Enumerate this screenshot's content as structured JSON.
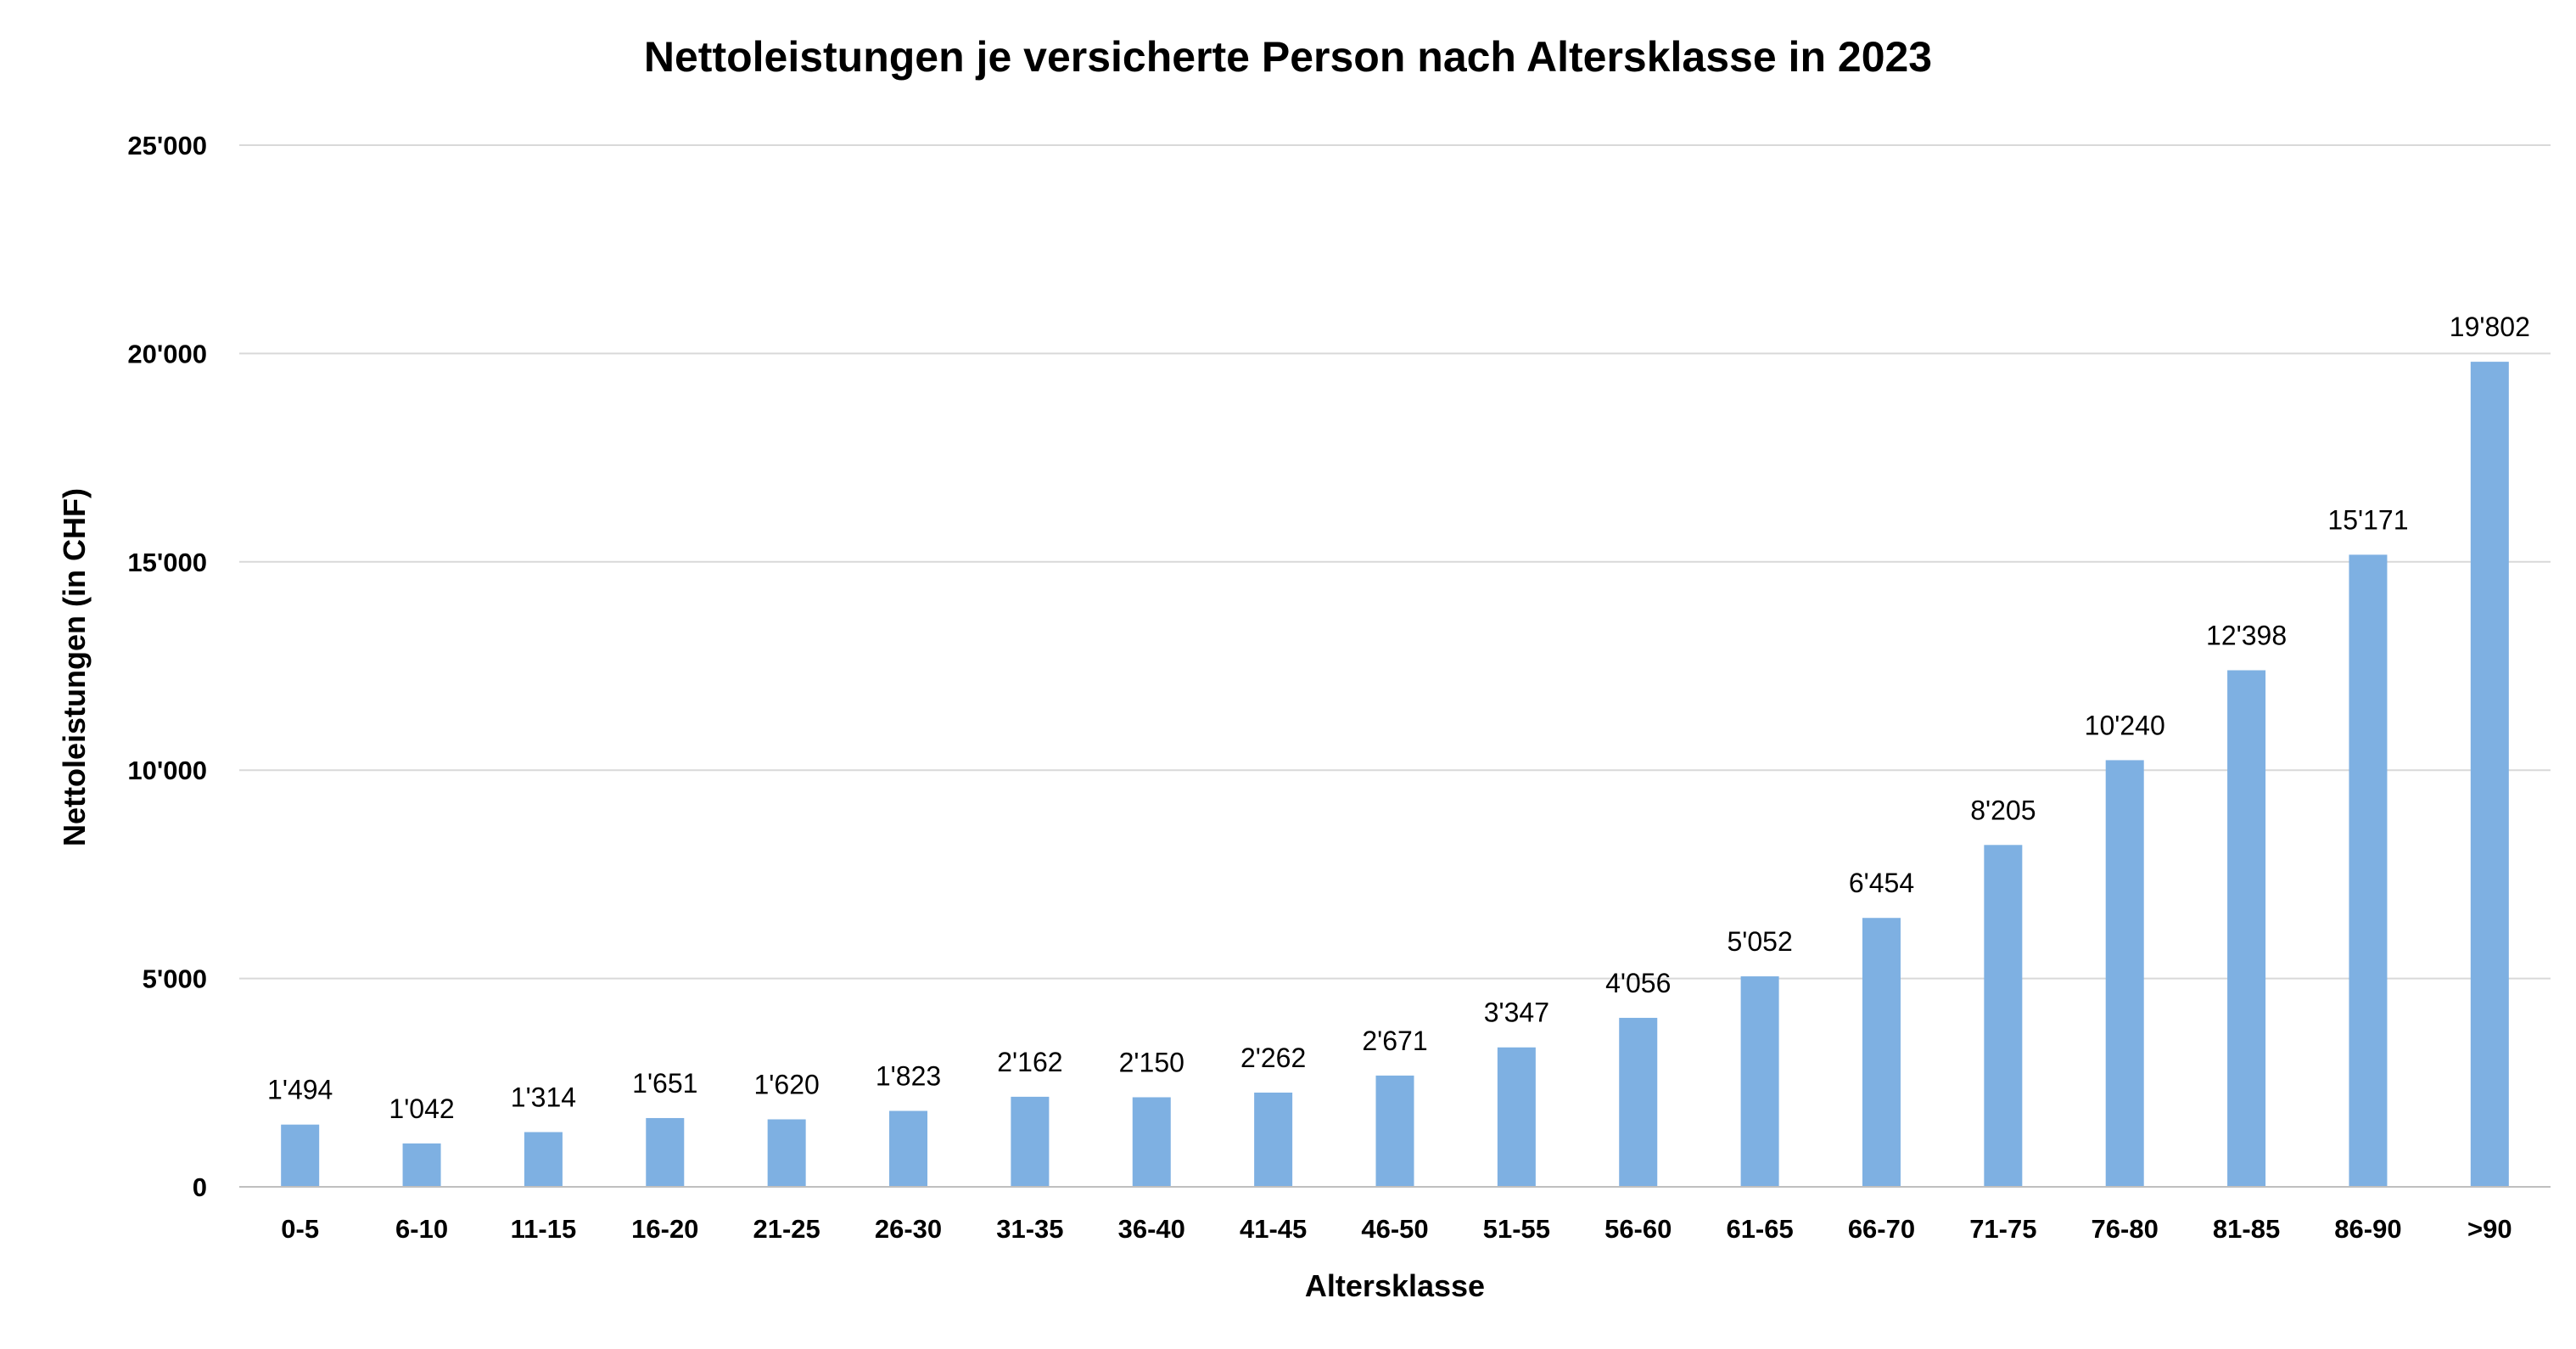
{
  "chart_data": {
    "type": "bar",
    "title": "Nettoleistungen je versicherte Person nach Altersklasse in 2023",
    "xlabel": "Altersklasse",
    "ylabel": "Nettoleistungen (in CHF)",
    "ylim": [
      0,
      25000
    ],
    "yticks": [
      0,
      5000,
      10000,
      15000,
      20000,
      25000
    ],
    "ytick_labels": [
      "0",
      "5'000",
      "10'000",
      "15'000",
      "20'000",
      "25'000"
    ],
    "grid": true,
    "bar_color": "#7eb0e2",
    "categories": [
      "0-5",
      "6-10",
      "11-15",
      "16-20",
      "21-25",
      "26-30",
      "31-35",
      "36-40",
      "41-45",
      "46-50",
      "51-55",
      "56-60",
      "61-65",
      "66-70",
      "71-75",
      "76-80",
      "81-85",
      "86-90",
      ">90"
    ],
    "values": [
      1494,
      1042,
      1314,
      1651,
      1620,
      1823,
      2162,
      2150,
      2262,
      2671,
      3347,
      4056,
      5052,
      6454,
      8205,
      10240,
      12398,
      15171,
      19802
    ],
    "value_labels": [
      "1'494",
      "1'042",
      "1'314",
      "1'651",
      "1'620",
      "1'823",
      "2'162",
      "2'150",
      "2'262",
      "2'671",
      "3'347",
      "4'056",
      "5'052",
      "6'454",
      "8'205",
      "10'240",
      "12'398",
      "15'171",
      "19'802"
    ]
  }
}
